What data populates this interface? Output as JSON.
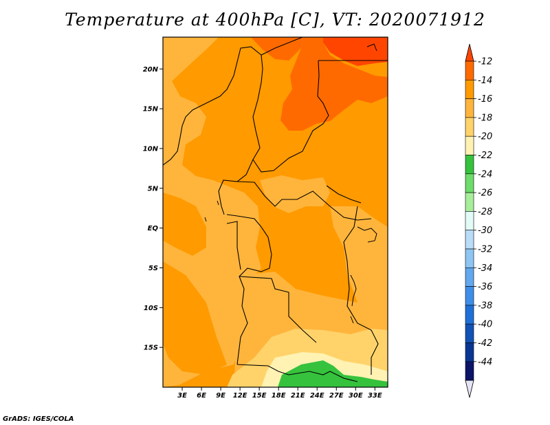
{
  "title": "Temperature at 400hPa [C], VT: 2020071912",
  "credit": "GrADS: IGES/COLA",
  "map": {
    "region": "Central Africa",
    "lon_range": [
      0,
      35
    ],
    "lat_range": [
      -20,
      24
    ],
    "lat_labels": [
      {
        "lat": 20,
        "label": "20N"
      },
      {
        "lat": 15,
        "label": "15N"
      },
      {
        "lat": 10,
        "label": "10N"
      },
      {
        "lat": 5,
        "label": "5N"
      },
      {
        "lat": 0,
        "label": "EQ"
      },
      {
        "lat": -5,
        "label": "5S"
      },
      {
        "lat": -10,
        "label": "10S"
      },
      {
        "lat": -15,
        "label": "15S"
      }
    ],
    "lon_labels": [
      {
        "lon": 3,
        "label": "3E"
      },
      {
        "lon": 6,
        "label": "6E"
      },
      {
        "lon": 9,
        "label": "9E"
      },
      {
        "lon": 12,
        "label": "12E"
      },
      {
        "lon": 15,
        "label": "15E"
      },
      {
        "lon": 18,
        "label": "18E"
      },
      {
        "lon": 21,
        "label": "21E"
      },
      {
        "lon": 24,
        "label": "24E"
      },
      {
        "lon": 27,
        "label": "27E"
      },
      {
        "lon": 30,
        "label": "30E"
      },
      {
        "lon": 33,
        "label": "33E"
      }
    ],
    "field_description": "warmest (-12 to -14 C) over Sudan/Chad in the north-east; -14 to -16 C over much of the interior; -16 to -18 C along the west and south-west; cooler -18 to -22 C and a -22 to -24 C patch in the far south"
  },
  "colorbar": {
    "levels": [
      "-12",
      "-14",
      "-16",
      "-18",
      "-20",
      "-22",
      "-24",
      "-26",
      "-28",
      "-30",
      "-32",
      "-34",
      "-36",
      "-38",
      "-40",
      "-42",
      "-44"
    ],
    "colors": [
      "#ff4500",
      "#ff6a00",
      "#ff9a00",
      "#ffb53c",
      "#ffd36a",
      "#fff2b3",
      "#36c23d",
      "#6ddc6a",
      "#a8ee9a",
      "#e2fbf7",
      "#b9ddf8",
      "#8ec5f3",
      "#62a8ef",
      "#3e8ee9",
      "#1f6fd8",
      "#1252b6",
      "#0a3693",
      "#0b1466",
      "#e4e4f6"
    ]
  }
}
